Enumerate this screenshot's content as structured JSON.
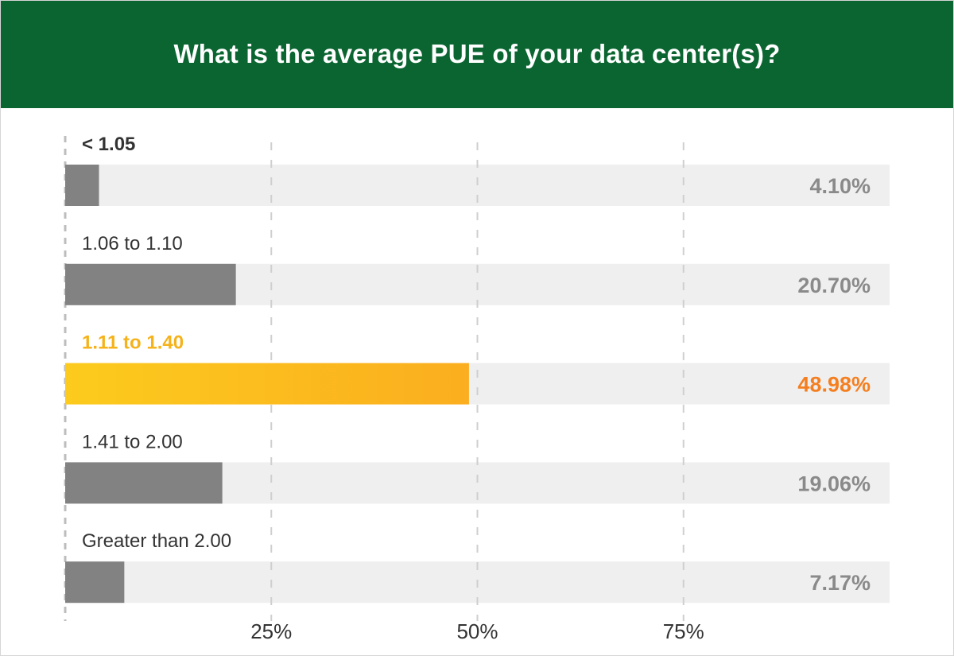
{
  "chart_data": {
    "type": "bar",
    "orientation": "horizontal",
    "title": "What is the average PUE of your data center(s)?",
    "categories": [
      "< 1.05",
      "1.06 to 1.10",
      "1.11 to 1.40",
      "1.41 to 2.00",
      "Greater than 2.00"
    ],
    "values": [
      4.1,
      20.7,
      48.98,
      19.06,
      7.17
    ],
    "value_labels": [
      "4.10%",
      "20.70%",
      "48.98%",
      "19.06%",
      "7.17%"
    ],
    "highlight_index": 2,
    "xlim": [
      0,
      100
    ],
    "xticks": [
      25,
      50,
      75
    ],
    "xtick_labels": [
      "25%",
      "50%",
      "75%"
    ],
    "grid": true,
    "colors": {
      "header": "#0b6531",
      "bar": "#828282",
      "track": "#efefef",
      "highlight_start": "#fccb1d",
      "highlight_end": "#fbae1f",
      "highlight_label": "#f5b21b",
      "highlight_value": "#f47f20",
      "value_text": "#8a8a8a",
      "category_text": "#333333"
    }
  }
}
